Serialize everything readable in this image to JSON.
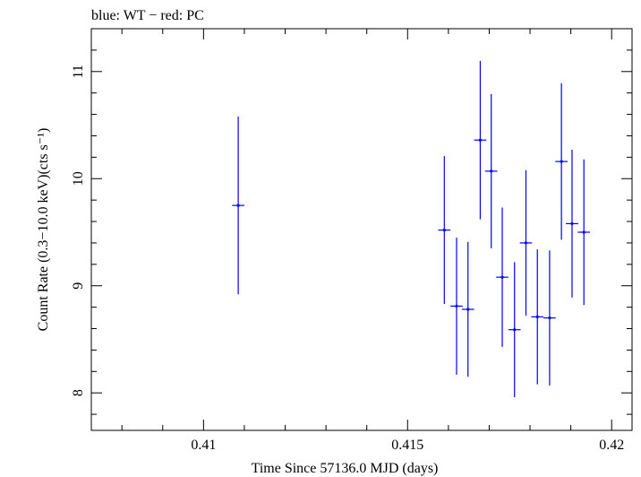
{
  "chart_data": {
    "type": "scatter",
    "title": "blue: WT − red: PC",
    "xlabel": "Time Since 57136.0 MJD (days)",
    "ylabel": "Count Rate (0.3−10.0 keV)(cts s⁻¹)",
    "xlim": [
      0.40725,
      0.4205
    ],
    "ylim": [
      7.65,
      11.4
    ],
    "x_ticks": [
      0.41,
      0.415,
      0.42
    ],
    "x_tick_labels": [
      "0.41",
      "0.415",
      "0.42"
    ],
    "y_ticks": [
      8,
      9,
      10,
      11
    ],
    "y_tick_labels": [
      "8",
      "9",
      "10",
      "11"
    ],
    "grid": false,
    "series": [
      {
        "name": "WT",
        "color": "#0000ff",
        "points": [
          {
            "x": 0.41085,
            "y": 9.75,
            "yerr": 0.83,
            "xerr": 0.00015
          },
          {
            "x": 0.4159,
            "y": 9.52,
            "yerr": 0.69,
            "xerr": 0.00015
          },
          {
            "x": 0.4162,
            "y": 8.81,
            "yerr": 0.64,
            "xerr": 0.00015
          },
          {
            "x": 0.41648,
            "y": 8.78,
            "yerr": 0.63,
            "xerr": 0.00015
          },
          {
            "x": 0.41678,
            "y": 10.36,
            "yerr": 0.74,
            "xerr": 0.00015
          },
          {
            "x": 0.41705,
            "y": 10.07,
            "yerr": 0.72,
            "xerr": 0.00015
          },
          {
            "x": 0.41732,
            "y": 9.08,
            "yerr": 0.65,
            "xerr": 0.00015
          },
          {
            "x": 0.41762,
            "y": 8.59,
            "yerr": 0.63,
            "xerr": 0.00015
          },
          {
            "x": 0.4179,
            "y": 9.4,
            "yerr": 0.68,
            "xerr": 0.00015
          },
          {
            "x": 0.41818,
            "y": 8.71,
            "yerr": 0.63,
            "xerr": 0.00015
          },
          {
            "x": 0.41848,
            "y": 8.7,
            "yerr": 0.63,
            "xerr": 0.00015
          },
          {
            "x": 0.41877,
            "y": 10.16,
            "yerr": 0.73,
            "xerr": 0.00015
          },
          {
            "x": 0.41903,
            "y": 9.58,
            "yerr": 0.69,
            "xerr": 0.00015
          },
          {
            "x": 0.41932,
            "y": 9.5,
            "yerr": 0.68,
            "xerr": 0.00015
          }
        ]
      }
    ]
  }
}
